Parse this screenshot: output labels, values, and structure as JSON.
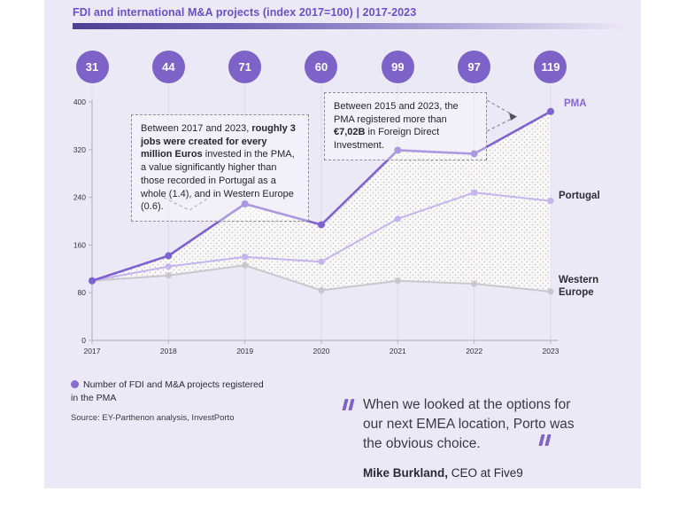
{
  "header": {
    "title": "FDI and international M&A projects (index 2017=100) | 2017-2023"
  },
  "counts": {
    "description": "Number of FDI and M&A projects registered in the PMA",
    "values": [
      31,
      44,
      71,
      60,
      99,
      97,
      119
    ],
    "circle_color": "#7d62c7"
  },
  "chart_data": {
    "type": "line",
    "title": "FDI and international M&A projects (index 2017=100) | 2017-2023",
    "x": [
      "2017",
      "2018",
      "2019",
      "2020",
      "2021",
      "2022",
      "2023"
    ],
    "ylim": [
      0,
      400
    ],
    "yticks": [
      0,
      80,
      160,
      240,
      320,
      400
    ],
    "grid": "vertical",
    "legend_position": "right-of-line-ends",
    "series": [
      {
        "name": "PMA",
        "values": [
          100,
          142,
          229,
          194,
          319,
          313,
          384
        ],
        "color": "#7e62cf"
      },
      {
        "name": "Portugal",
        "values": [
          100,
          124,
          140,
          132,
          204,
          248,
          234
        ],
        "color": "#c5b4ed"
      },
      {
        "name": "Western Europe",
        "values": [
          100,
          109,
          126,
          84,
          100,
          95,
          82
        ],
        "color": "#c9c7ce"
      }
    ],
    "area_band_between": [
      "PMA",
      "Western Europe"
    ]
  },
  "annotations": [
    {
      "parts": [
        {
          "text": "Between 2017 and 2023, ",
          "bold": false
        },
        {
          "text": "roughly 3 jobs were created for every million Euros",
          "bold": true
        },
        {
          "text": " invested in the PMA, a value significantly higher than those recorded in Portugal as a whole (1.4), and in Western Europe (0.6).",
          "bold": false
        }
      ]
    },
    {
      "parts": [
        {
          "text": "Between 2015 and 2023, the PMA registered more than ",
          "bold": false
        },
        {
          "text": "€7,02B",
          "bold": true
        },
        {
          "text": " in Foreign Direct Investment.",
          "bold": false
        }
      ]
    }
  ],
  "legend": {
    "text": "Number of FDI and M&A projects registered in the PMA"
  },
  "source": "Source: EY-Parthenon analysis, InvestPorto",
  "quote": {
    "text": "When we looked at the options for our next EMEA location, Porto was the obvious choice.",
    "author": "Mike Burkland,",
    "role": " CEO at Five9"
  },
  "colors": {
    "panel_bg": "#ece9f6",
    "title": "#6950c6",
    "axis": "#b6b3c3",
    "gridline": "#dbd7e8",
    "dashed_callout": "#8f8b9d",
    "text_dark": "#2b2a32"
  }
}
